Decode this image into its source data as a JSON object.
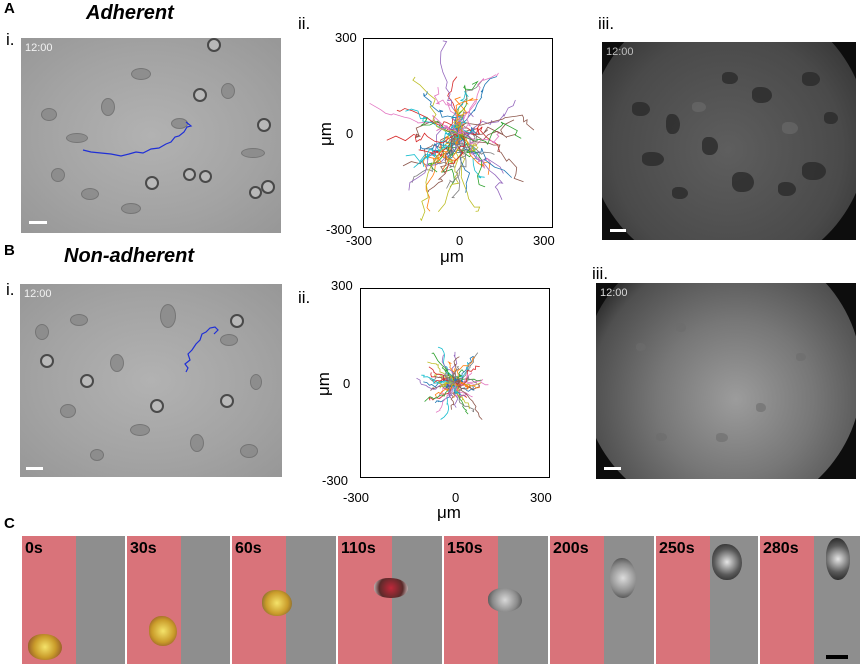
{
  "panel_a": {
    "letter": "A",
    "title": "Adherent",
    "sub_i": "i.",
    "sub_ii": "ii.",
    "sub_iii": "iii.",
    "bf_time": "12:00",
    "fl_time": "12:00",
    "plot": {
      "ytick_top": "300",
      "ytick_mid": "0",
      "ytick_bottom": "-300",
      "xtick_left": "-300",
      "xtick_mid": "0",
      "xtick_right": "300",
      "xlabel": "μm",
      "ylabel": "μm"
    }
  },
  "panel_b": {
    "letter": "B",
    "title": "Non-adherent",
    "sub_i": "i.",
    "sub_ii": "ii.",
    "sub_iii": "iii.",
    "bf_time": "12:00",
    "fl_time": "12:00",
    "plot": {
      "ytick_top": "300",
      "ytick_mid": "0",
      "ytick_bottom": "-300",
      "xtick_left": "-300",
      "xtick_mid": "0",
      "xtick_right": "300",
      "xlabel": "μm",
      "ylabel": "μm"
    }
  },
  "panel_c": {
    "letter": "C",
    "times": [
      "0s",
      "30s",
      "60s",
      "110s",
      "150s",
      "200s",
      "250s",
      "280s"
    ]
  },
  "colors": {
    "track": "#1f2fd6",
    "red_stripe": "#d9737a",
    "track_palette": [
      "#1f77b4",
      "#d62728",
      "#2ca02c",
      "#9467bd",
      "#ff7f0e",
      "#17becf",
      "#bcbd22",
      "#8c564b",
      "#e377c2",
      "#7f7f7f"
    ]
  }
}
